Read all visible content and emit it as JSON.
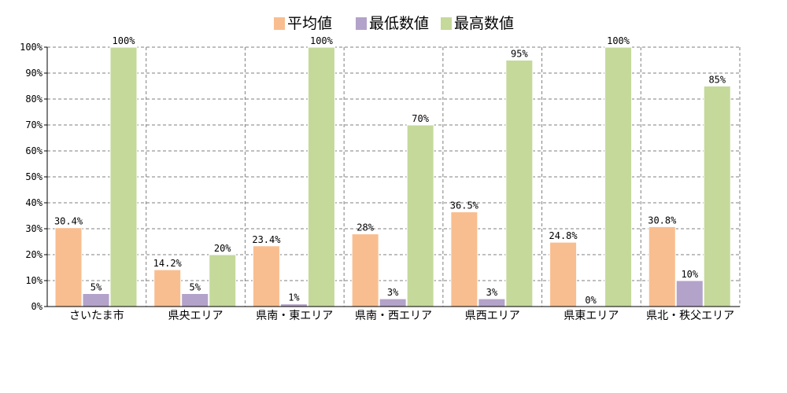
{
  "chart_data": {
    "type": "bar",
    "categories": [
      "さいたま市",
      "県央エリア",
      "県南・東エリア",
      "県南・西エリア",
      "県西エリア",
      "県東エリア",
      "県北・秩父エリア"
    ],
    "series": [
      {
        "name": "平均値",
        "values": [
          30.4,
          14.2,
          23.4,
          28,
          36.5,
          24.8,
          30.8
        ],
        "labels": [
          "30.4%",
          "14.2%",
          "23.4%",
          "28%",
          "36.5%",
          "24.8%",
          "30.8%"
        ],
        "color": "#f9be8f"
      },
      {
        "name": "最低数値",
        "values": [
          5,
          5,
          1,
          3,
          3,
          0,
          10
        ],
        "labels": [
          "5%",
          "5%",
          "1%",
          "3%",
          "3%",
          "0%",
          "10%"
        ],
        "color": "#b3a2c9"
      },
      {
        "name": "最高数値",
        "values": [
          100,
          20,
          100,
          70,
          95,
          100,
          85
        ],
        "labels": [
          "100%",
          "20%",
          "100%",
          "70%",
          "95%",
          "100%",
          "85%"
        ],
        "color": "#c5d99b"
      }
    ],
    "title": "",
    "xlabel": "",
    "ylabel": "",
    "ylim": [
      0,
      100
    ],
    "yticks": [
      0,
      10,
      20,
      30,
      40,
      50,
      60,
      70,
      80,
      90,
      100
    ],
    "ytick_labels": [
      "0%",
      "10%",
      "20%",
      "30%",
      "40%",
      "50%",
      "60%",
      "70%",
      "80%",
      "90%",
      "100%"
    ],
    "grid": true,
    "legend_position": "top-center"
  }
}
